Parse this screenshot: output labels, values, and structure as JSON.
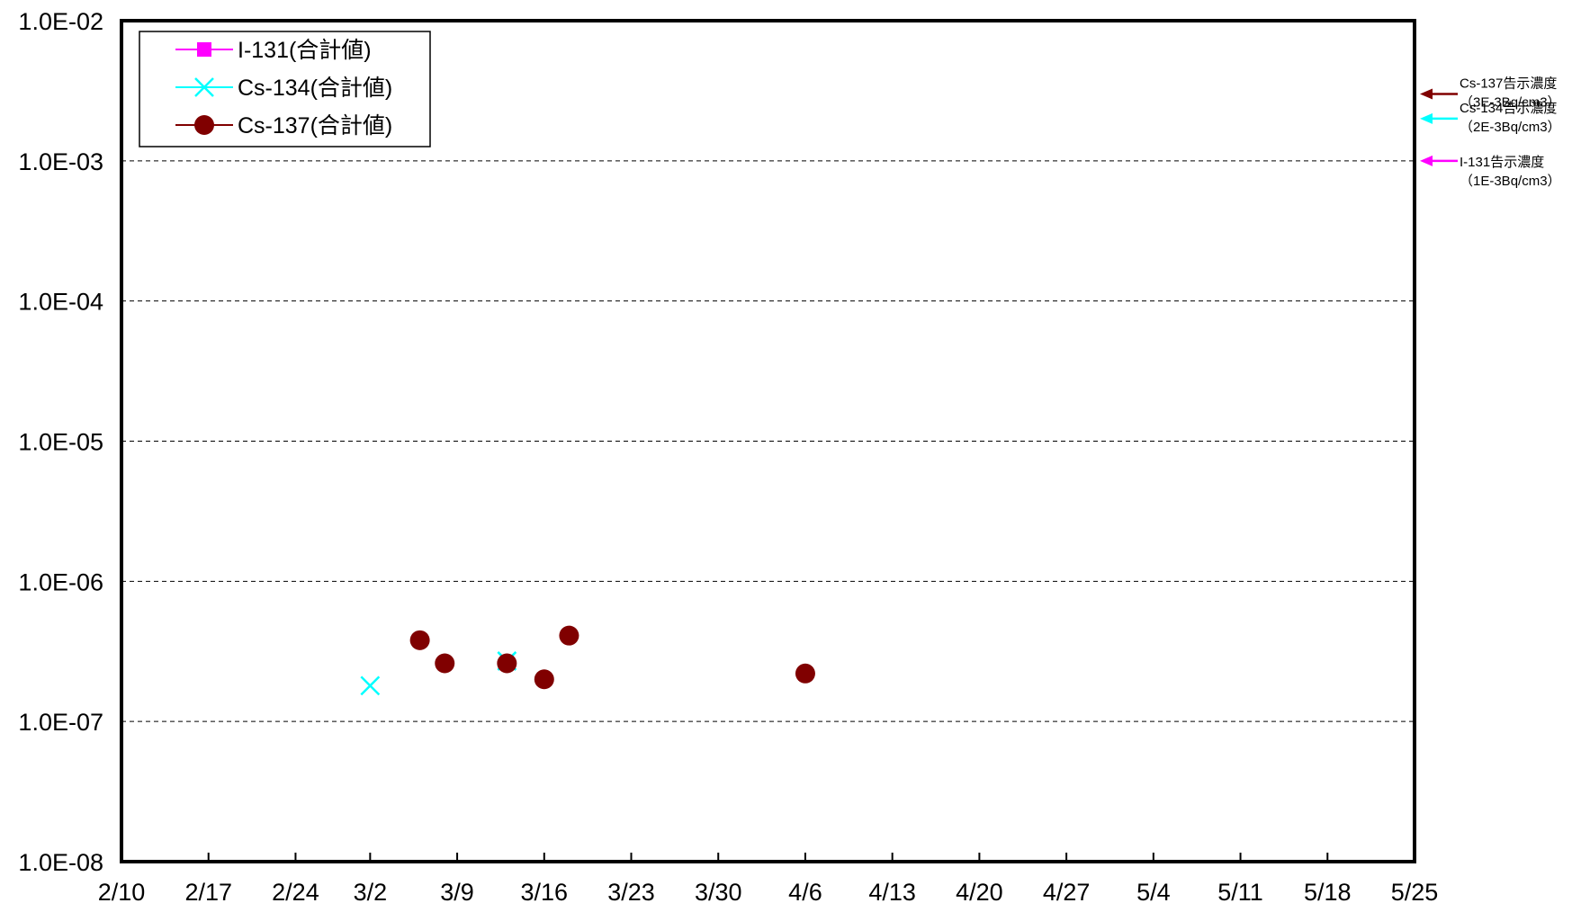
{
  "chart_data": {
    "type": "scatter",
    "title": "",
    "xlabel": "",
    "ylabel": "",
    "y_scale": "log",
    "ylim": [
      1e-08,
      0.01
    ],
    "xlim": [
      "2/10",
      "5/25"
    ],
    "x_tick_labels": [
      "2/10",
      "2/17",
      "2/24",
      "3/2",
      "3/9",
      "3/16",
      "3/23",
      "3/30",
      "4/6",
      "4/13",
      "4/20",
      "4/27",
      "5/4",
      "5/11",
      "5/18",
      "5/25"
    ],
    "y_tick_labels": [
      "1.0E-02",
      "1.0E-03",
      "1.0E-04",
      "1.0E-05",
      "1.0E-06",
      "1.0E-07",
      "1.0E-08"
    ],
    "y_tick_values": [
      0.01,
      0.001,
      0.0001,
      1e-05,
      1e-06,
      1e-07,
      1e-08
    ],
    "grid": "horizontal dashed",
    "legend_position": "top-left",
    "series": [
      {
        "name": "I-131(合計値)",
        "marker": "square",
        "color": "#ff00ff",
        "points": []
      },
      {
        "name": "Cs-134(合計値)",
        "marker": "x",
        "color": "#00ffff",
        "points": [
          {
            "x": "3/2",
            "y": 1.8e-07
          },
          {
            "x": "3/13",
            "y": 2.7e-07
          }
        ]
      },
      {
        "name": "Cs-137(合計値)",
        "marker": "circle",
        "color": "#800000",
        "points": [
          {
            "x": "3/6",
            "y": 3.8e-07
          },
          {
            "x": "3/8",
            "y": 2.6e-07
          },
          {
            "x": "3/13",
            "y": 2.6e-07
          },
          {
            "x": "3/16",
            "y": 2e-07
          },
          {
            "x": "3/18",
            "y": 4.1e-07
          },
          {
            "x": "4/6",
            "y": 2.2e-07
          }
        ]
      }
    ],
    "reference_limits": [
      {
        "name": "Cs-137告示濃度",
        "value_text": "（3E-3Bq/cm3）",
        "value": 0.003,
        "color": "#800000"
      },
      {
        "name": "Cs-134告示濃度",
        "value_text": "（2E-3Bq/cm3）",
        "value": 0.002,
        "color": "#00ffff"
      },
      {
        "name": "I-131告示濃度",
        "value_text": "（1E-3Bq/cm3）",
        "value": 0.001,
        "color": "#ff00ff"
      }
    ]
  }
}
